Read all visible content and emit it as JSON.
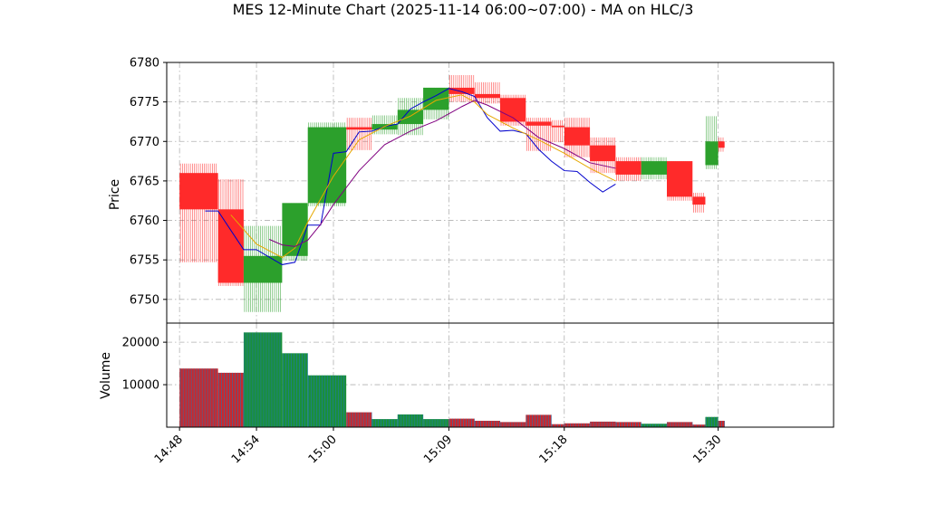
{
  "chart_data": {
    "type": "candlestick",
    "title": "MES 12-Minute Chart (2025-11-14 06:00~07:00) - MA on HLC/3",
    "price_panel": {
      "ylabel": "Price",
      "ylim": [
        6747,
        6780
      ],
      "yticks": [
        6750,
        6755,
        6760,
        6765,
        6770,
        6775,
        6780
      ],
      "grid": true
    },
    "volume_panel": {
      "ylabel": "Volume",
      "ylim": [
        0,
        24500
      ],
      "yticks": [
        10000,
        20000
      ],
      "grid": true
    },
    "x_time_range": [
      "14:47",
      "15:39"
    ],
    "xticks": [
      "14:48",
      "14:54",
      "15:00",
      "15:09",
      "15:18",
      "15:30"
    ],
    "colors": {
      "up": "#2ca02c",
      "down": "#ff2a2a",
      "ma_fast": "#0000cc",
      "ma_mid": "#e6a800",
      "ma_slow": "#800080",
      "vol_up_edge": "#1f77b4"
    },
    "bars": [
      {
        "start": "14:48",
        "end": "14:51",
        "open": 6766,
        "high": 6767.2,
        "low": 6754.7,
        "close": 6761.4,
        "volume": 13800
      },
      {
        "start": "14:51",
        "end": "14:53",
        "open": 6761.4,
        "high": 6765.2,
        "low": 6751.7,
        "close": 6752.1,
        "volume": 12800
      },
      {
        "start": "14:53",
        "end": "14:56",
        "open": 6752.1,
        "high": 6759.3,
        "low": 6748.4,
        "close": 6755.5,
        "volume": 22300
      },
      {
        "start": "14:56",
        "end": "14:58",
        "open": 6755.5,
        "high": 6762.2,
        "low": 6754.9,
        "close": 6762.2,
        "volume": 17400
      },
      {
        "start": "14:58",
        "end": "15:01",
        "open": 6762.2,
        "high": 6772.4,
        "low": 6761.8,
        "close": 6771.8,
        "volume": 12200
      },
      {
        "start": "15:01",
        "end": "15:03",
        "open": 6771.8,
        "high": 6773.0,
        "low": 6768.9,
        "close": 6771.5,
        "volume": 3500
      },
      {
        "start": "15:03",
        "end": "15:05",
        "open": 6771.5,
        "high": 6773.3,
        "low": 6770.9,
        "close": 6772.2,
        "volume": 1900
      },
      {
        "start": "15:05",
        "end": "15:07",
        "open": 6772.2,
        "high": 6775.5,
        "low": 6770.8,
        "close": 6774.0,
        "volume": 3000
      },
      {
        "start": "15:07",
        "end": "15:09",
        "open": 6774.0,
        "high": 6776.8,
        "low": 6772.8,
        "close": 6776.8,
        "volume": 1900
      },
      {
        "start": "15:09",
        "end": "15:11",
        "open": 6776.8,
        "high": 6778.4,
        "low": 6775.0,
        "close": 6776.0,
        "volume": 2000
      },
      {
        "start": "15:11",
        "end": "15:13",
        "open": 6776.0,
        "high": 6777.5,
        "low": 6774.8,
        "close": 6775.5,
        "volume": 1500
      },
      {
        "start": "15:13",
        "end": "15:15",
        "open": 6775.5,
        "high": 6775.9,
        "low": 6772.0,
        "close": 6772.5,
        "volume": 1200
      },
      {
        "start": "15:15",
        "end": "15:17",
        "open": 6772.5,
        "high": 6773.0,
        "low": 6768.8,
        "close": 6772.0,
        "volume": 2900
      },
      {
        "start": "15:17",
        "end": "15:18",
        "open": 6772.0,
        "high": 6772.7,
        "low": 6769.9,
        "close": 6771.8,
        "volume": 700
      },
      {
        "start": "15:18",
        "end": "15:20",
        "open": 6771.8,
        "high": 6773.0,
        "low": 6768.0,
        "close": 6769.5,
        "volume": 900
      },
      {
        "start": "15:20",
        "end": "15:22",
        "open": 6769.5,
        "high": 6770.5,
        "low": 6766.0,
        "close": 6767.5,
        "volume": 1300
      },
      {
        "start": "15:22",
        "end": "15:24",
        "open": 6767.5,
        "high": 6768.0,
        "low": 6765.0,
        "close": 6765.8,
        "volume": 1200
      },
      {
        "start": "15:24",
        "end": "15:26",
        "open": 6765.8,
        "high": 6768.0,
        "low": 6765.2,
        "close": 6767.5,
        "volume": 800
      },
      {
        "start": "15:26",
        "end": "15:28",
        "open": 6767.5,
        "high": 6767.5,
        "low": 6762.5,
        "close": 6763.0,
        "volume": 1200
      },
      {
        "start": "15:28",
        "end": "15:29",
        "open": 6763.0,
        "high": 6763.5,
        "low": 6761.0,
        "close": 6762.0,
        "volume": 600
      },
      {
        "start": "15:29",
        "end": "15:30",
        "open": 6767.0,
        "high": 6773.2,
        "low": 6766.5,
        "close": 6770.0,
        "volume": 2400
      },
      {
        "start": "15:30",
        "end": "15:30.5",
        "open": 6770.0,
        "high": 6770.5,
        "low": 6768.7,
        "close": 6769.2,
        "volume": 1500
      }
    ],
    "ma_fast": [
      [
        "14:50",
        6761.2
      ],
      [
        "14:51",
        6761.2
      ],
      [
        "14:53",
        6756.3
      ],
      [
        "14:54",
        6756.3
      ],
      [
        "14:56",
        6754.4
      ],
      [
        "14:57",
        6754.7
      ],
      [
        "14:58",
        6759.4
      ],
      [
        "14:59",
        6759.4
      ],
      [
        "15:00",
        6768.5
      ],
      [
        "15:01",
        6768.7
      ],
      [
        "15:02",
        6771.2
      ],
      [
        "15:03",
        6771.3
      ],
      [
        "15:04",
        6771.9
      ],
      [
        "15:05",
        6772.2
      ],
      [
        "15:06",
        6774.1
      ],
      [
        "15:07",
        6775.0
      ],
      [
        "15:08",
        6775.8
      ],
      [
        "15:09",
        6776.7
      ],
      [
        "15:10",
        6776.3
      ],
      [
        "15:11",
        6775.7
      ],
      [
        "15:12",
        6773.0
      ],
      [
        "15:13",
        6771.3
      ],
      [
        "15:14",
        6771.4
      ],
      [
        "15:15",
        6771.0
      ],
      [
        "15:16",
        6769.0
      ],
      [
        "15:17",
        6767.5
      ],
      [
        "15:18",
        6766.3
      ],
      [
        "15:19",
        6766.2
      ],
      [
        "15:20",
        6764.8
      ],
      [
        "15:21",
        6763.6
      ],
      [
        "15:22",
        6764.6
      ]
    ],
    "ma_mid": [
      [
        "14:52",
        6760.7
      ],
      [
        "14:54",
        6757.0
      ],
      [
        "14:56",
        6755.3
      ],
      [
        "14:57",
        6756.5
      ],
      [
        "14:58",
        6759.8
      ],
      [
        "15:00",
        6765.6
      ],
      [
        "15:02",
        6770.2
      ],
      [
        "15:04",
        6771.9
      ],
      [
        "15:06",
        6773.2
      ],
      [
        "15:08",
        6775.2
      ],
      [
        "15:10",
        6775.9
      ],
      [
        "15:11",
        6775.0
      ],
      [
        "15:12",
        6773.4
      ],
      [
        "15:14",
        6771.7
      ],
      [
        "15:16",
        6770.2
      ],
      [
        "15:18",
        6768.5
      ],
      [
        "15:20",
        6766.6
      ],
      [
        "15:22",
        6765.0
      ]
    ],
    "ma_slow": [
      [
        "14:55",
        6757.6
      ],
      [
        "14:56",
        6756.9
      ],
      [
        "14:57",
        6756.7
      ],
      [
        "14:58",
        6757.5
      ],
      [
        "14:59",
        6759.5
      ],
      [
        "15:00",
        6762.0
      ],
      [
        "15:02",
        6766.3
      ],
      [
        "15:04",
        6769.6
      ],
      [
        "15:06",
        6771.3
      ],
      [
        "15:08",
        6772.6
      ],
      [
        "15:10",
        6774.4
      ],
      [
        "15:11",
        6775.2
      ],
      [
        "15:12",
        6774.6
      ],
      [
        "15:14",
        6773.0
      ],
      [
        "15:16",
        6770.5
      ],
      [
        "15:18",
        6769.1
      ],
      [
        "15:20",
        6767.3
      ],
      [
        "15:22",
        6766.6
      ]
    ]
  }
}
